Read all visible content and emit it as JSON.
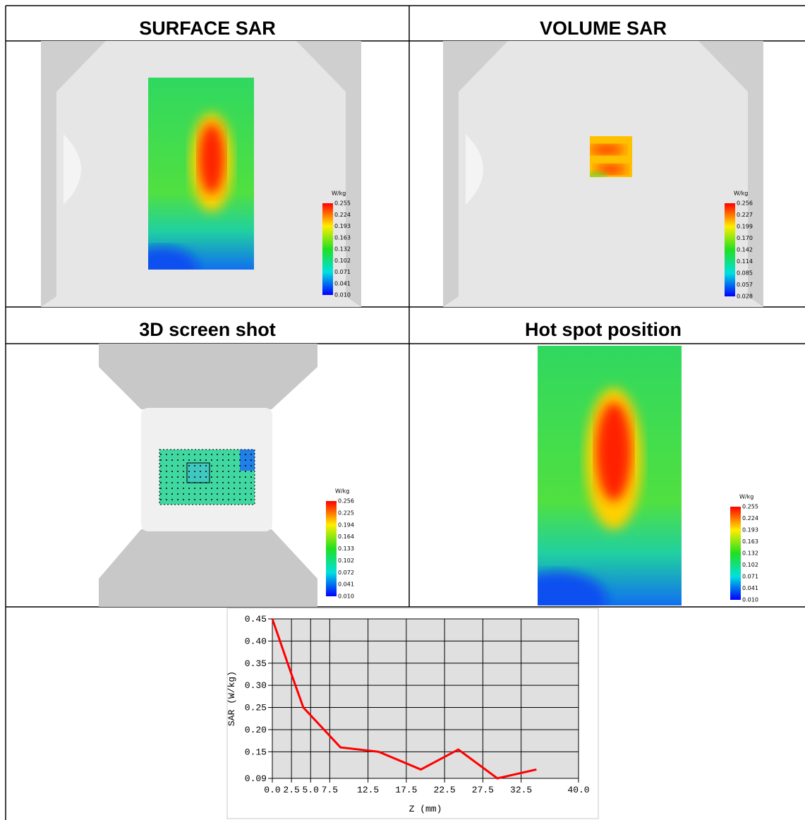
{
  "panels": [
    {
      "title": "SURFACE SAR",
      "colorbar": {
        "unit": "W/kg",
        "labels": [
          "0.255",
          "0.224",
          "0.193",
          "0.163",
          "0.132",
          "0.102",
          "0.071",
          "0.041",
          "0.010"
        ]
      }
    },
    {
      "title": "VOLUME SAR",
      "colorbar": {
        "unit": "W/kg",
        "labels": [
          "0.256",
          "0.227",
          "0.199",
          "0.170",
          "0.142",
          "0.114",
          "0.085",
          "0.057",
          "0.028"
        ]
      }
    },
    {
      "title": "3D screen shot",
      "colorbar": {
        "unit": "W/kg",
        "labels": [
          "0.256",
          "0.225",
          "0.194",
          "0.164",
          "0.133",
          "0.102",
          "0.072",
          "0.041",
          "0.010"
        ]
      }
    },
    {
      "title": "Hot spot position",
      "colorbar": {
        "unit": "W/kg",
        "labels": [
          "0.255",
          "0.224",
          "0.193",
          "0.163",
          "0.132",
          "0.102",
          "0.071",
          "0.041",
          "0.010"
        ]
      }
    }
  ],
  "chart_data": {
    "type": "line",
    "x_label": "Z (mm)",
    "y_label": "SAR (W/kg)",
    "x": [
      0,
      2.4,
      4.05,
      8.9,
      13.9,
      19.4,
      24.3,
      29.4,
      34.5
    ],
    "series": [
      {
        "name": "SAR",
        "color": "#ff0000",
        "values": [
          0.45,
          0.33,
          0.25,
          0.16,
          0.15,
          0.11,
          0.155,
          0.09,
          0.11
        ]
      }
    ],
    "xlim": [
      0,
      40
    ],
    "xticks": [
      {
        "value": 0,
        "label": "0.0"
      },
      2.5,
      {
        "value": 5,
        "label": "5.0"
      },
      7.5,
      12.5,
      17.5,
      22.5,
      27.5,
      32.5,
      {
        "value": 40,
        "label": "40.0"
      }
    ],
    "ylim": [
      0.09,
      0.45
    ],
    "yticks": [
      0.09,
      0.15,
      {
        "value": 0.2,
        "label": "0.20"
      },
      0.25,
      {
        "value": 0.3,
        "label": "0.30"
      },
      0.35,
      {
        "value": 0.4,
        "label": "0.40"
      },
      0.45
    ],
    "grid": true
  }
}
